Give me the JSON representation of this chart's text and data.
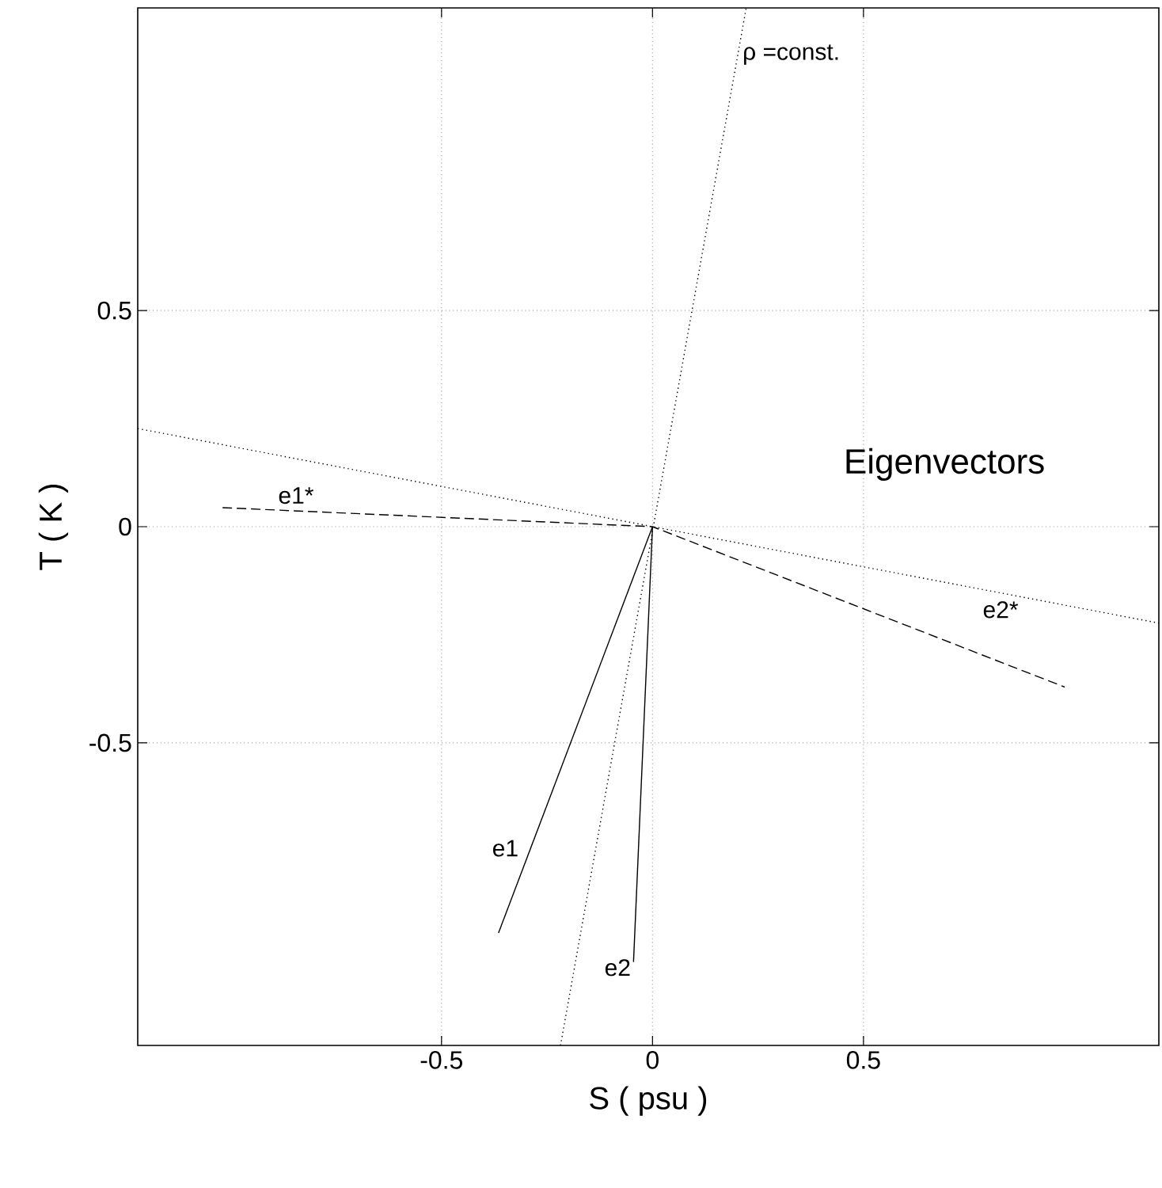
{
  "chart_data": {
    "type": "line",
    "xlabel": "S  ( psu )",
    "ylabel": "T  ( K )",
    "xlim": [
      -1.22,
      1.2
    ],
    "ylim": [
      -1.2,
      1.2
    ],
    "xticks": [
      -0.5,
      0,
      0.5
    ],
    "yticks": [
      -0.5,
      0,
      0.5
    ],
    "grid": true,
    "marker": "none",
    "series": [
      {
        "color": "#000000",
        "line_style": "dotted",
        "x": [
          -0.218,
          0.222
        ],
        "values": [
          -1.2,
          1.2
        ]
      },
      {
        "color": "#000000",
        "line_style": "dotted",
        "x": [
          -1.22,
          1.2
        ],
        "values": [
          0.227,
          -0.223
        ]
      },
      {
        "color": "#000000",
        "line_style": "dashed",
        "x": [
          -1.019,
          0,
          0.977
        ],
        "values": [
          0.044,
          0,
          -0.371
        ]
      },
      {
        "color": "#000000",
        "line_style": "solid",
        "x": [
          0,
          -0.365
        ],
        "values": [
          0,
          -0.94
        ]
      },
      {
        "color": "#000000",
        "line_style": "solid",
        "x": [
          0,
          -0.045
        ],
        "values": [
          0,
          -1.007
        ]
      }
    ],
    "annotations": [
      "ρ  =const.",
      "Eigenvectors",
      "e1*",
      "e2*",
      "e1",
      "e2"
    ]
  }
}
